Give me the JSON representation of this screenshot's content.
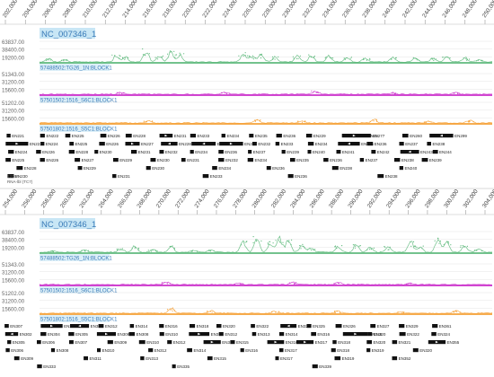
{
  "app": {
    "name": "genome-browser",
    "sequence_id_visible": "NC_007346_1"
  },
  "panels": [
    {
      "id": "panel-1",
      "axis_ticks": [
        "202,000",
        "204,000",
        "206,000",
        "208,000",
        "210,000",
        "212,000",
        "214,000",
        "216,000",
        "218,000",
        "220,000",
        "222,000",
        "224,000",
        "226,000",
        "228,000",
        "230,000",
        "232,000",
        "234,000",
        "236,000",
        "238,000",
        "240,000",
        "242,000",
        "244,000",
        "246,000",
        "248,000",
        "250,000"
      ],
      "seq_label": "NC_007346_1",
      "tracks": [
        {
          "name": "57488502:TG26_1N:BLOCK1",
          "color": "#5fba7d",
          "y_ticks": [
            "63837.00",
            "38400.00",
            "19200.00"
          ],
          "peaks": [
            [
              0.02,
              0.18
            ],
            [
              0.055,
              0.12
            ],
            [
              0.17,
              0.35
            ],
            [
              0.19,
              0.22
            ],
            [
              0.235,
              0.55
            ],
            [
              0.265,
              0.32
            ],
            [
              0.29,
              0.45
            ],
            [
              0.31,
              0.38
            ],
            [
              0.45,
              0.4
            ],
            [
              0.47,
              0.3
            ],
            [
              0.49,
              0.35
            ],
            [
              0.52,
              0.25
            ],
            [
              0.57,
              0.3
            ],
            [
              0.6,
              0.35
            ],
            [
              0.64,
              0.28
            ],
            [
              0.68,
              0.22
            ],
            [
              0.72,
              0.18
            ],
            [
              0.78,
              0.22
            ],
            [
              0.83,
              0.2
            ],
            [
              0.87,
              0.18
            ],
            [
              0.9,
              0.25
            ],
            [
              0.94,
              0.2
            ],
            [
              0.97,
              0.12
            ]
          ]
        },
        {
          "name": "57501502:1516_S6C1:BLOCK1",
          "color": "#cc33cc",
          "y_ticks": [
            "51343.00",
            "31200.00",
            "15600.00"
          ],
          "peaks": [
            [
              0.18,
              0.1
            ],
            [
              0.41,
              0.12
            ],
            [
              0.61,
              0.18
            ],
            [
              0.78,
              0.08
            ],
            [
              0.92,
              0.1
            ]
          ]
        },
        {
          "name": "57501802:1516_S5C1:BLOCK1",
          "color": "#f5a23a",
          "y_ticks": [
            "51202.00",
            "31200.00",
            "15600.00"
          ],
          "peaks": [
            [
              0.24,
              0.12
            ],
            [
              0.48,
              0.18
            ],
            [
              0.58,
              0.12
            ],
            [
              0.74,
              0.2
            ],
            [
              0.86,
              0.1
            ],
            [
              0.95,
              0.14
            ]
          ]
        }
      ],
      "gene_rows": [
        [
          "EN221",
          "EN222",
          "EN225",
          "EN226",
          "EN228",
          "EN231",
          "EN233",
          "EN234",
          "EN235",
          "EN236",
          "EN229",
          "EN23",
          "EN277",
          "EN260",
          "EN299"
        ],
        [
          "EN223",
          "EN224",
          "EN225",
          "EN226",
          "EN227",
          "EN228",
          "EN230",
          "EN231",
          "EN232",
          "EN233",
          "EN234",
          "EN235",
          "EN236",
          "EN237",
          "EN238"
        ],
        [
          "EN224",
          "EN226",
          "EN228",
          "EN230",
          "EN231",
          "EN232",
          "EN234",
          "EN236",
          "EN237",
          "EN239",
          "EN240",
          "EN241",
          "EN242",
          "EN243",
          "EN244"
        ],
        [
          "EN225",
          "EN226",
          "EN227",
          "EN229",
          "EN230",
          "EN231",
          "EN232",
          "EN234",
          "EN235",
          "EN236",
          "EN237",
          "EN238",
          "EN239"
        ],
        [
          "EN228",
          "EN229",
          "EN230",
          "EN234",
          "EN236",
          "EN238",
          "EN240"
        ],
        [
          "EN230",
          "EN231",
          "EN233",
          "EN236",
          "EN238"
        ]
      ],
      "footnote": "RNA-lbl (TC7)",
      "footnote_id": "1206A"
    },
    {
      "id": "panel-2",
      "axis_ticks": [
        "254,000",
        "256,000",
        "258,000",
        "260,000",
        "262,000",
        "264,000",
        "266,000",
        "268,000",
        "270,000",
        "272,000",
        "274,000",
        "276,000",
        "278,000",
        "280,000",
        "282,000",
        "284,000",
        "286,000",
        "288,000",
        "290,000",
        "292,000",
        "294,000",
        "296,000",
        "298,000",
        "300,000",
        "302,000",
        "304,000"
      ],
      "seq_label": "NC_007346_1",
      "tracks": [
        {
          "name": "57488502:TG26_1N:BLOCK1",
          "color": "#5fba7d",
          "y_ticks": [
            "63837.00",
            "38400.00",
            "19200.00"
          ],
          "peaks": [
            [
              0.03,
              0.08
            ],
            [
              0.1,
              0.12
            ],
            [
              0.18,
              0.18
            ],
            [
              0.21,
              0.3
            ],
            [
              0.25,
              0.15
            ],
            [
              0.29,
              0.3
            ],
            [
              0.34,
              0.12
            ],
            [
              0.38,
              0.12
            ],
            [
              0.45,
              0.55
            ],
            [
              0.48,
              0.7
            ],
            [
              0.51,
              0.45
            ],
            [
              0.53,
              0.8
            ],
            [
              0.55,
              0.6
            ],
            [
              0.58,
              0.35
            ],
            [
              0.6,
              0.22
            ],
            [
              0.66,
              0.3
            ],
            [
              0.7,
              0.4
            ],
            [
              0.73,
              0.25
            ],
            [
              0.77,
              0.28
            ],
            [
              0.82,
              0.5
            ],
            [
              0.84,
              0.3
            ],
            [
              0.88,
              0.6
            ],
            [
              0.9,
              0.45
            ],
            [
              0.94,
              0.3
            ],
            [
              0.97,
              0.18
            ]
          ]
        },
        {
          "name": "57501502:1516_S6C1:BLOCK1",
          "color": "#cc33cc",
          "y_ticks": [
            "51343.00",
            "31200.00",
            "15600.00"
          ],
          "peaks": [
            [
              0.28,
              0.14
            ],
            [
              0.44,
              0.08
            ],
            [
              0.56,
              0.12
            ],
            [
              0.66,
              0.1
            ],
            [
              0.82,
              0.08
            ]
          ]
        },
        {
          "name": "57501802:1516_S5C1:BLOCK1",
          "color": "#f5a23a",
          "y_ticks": [
            "51202.00",
            "31200.00",
            "15600.00"
          ],
          "peaks": [
            [
              0.29,
              0.28
            ],
            [
              0.38,
              0.12
            ],
            [
              0.52,
              0.1
            ],
            [
              0.66,
              0.12
            ],
            [
              0.8,
              0.08
            ],
            [
              0.92,
              0.12
            ]
          ]
        }
      ],
      "gene_rows": [
        [
          "EN307",
          "EN309",
          "EN310",
          "EN312",
          "EN314",
          "EN316",
          "EN318",
          "EN320",
          "EN322",
          "EN324",
          "EN325",
          "EN326",
          "EN327",
          "EN329",
          "EN361"
        ],
        [
          "EN302",
          "EN304",
          "EN305",
          "EN306",
          "EN308",
          "EN310",
          "EN311",
          "EN312",
          "EN313",
          "EN314",
          "EN316",
          "EN318",
          "EN320",
          "EN322",
          "EN324"
        ],
        [
          "EN305",
          "EN306",
          "EN307",
          "EN309",
          "EN310",
          "EN312",
          "EN313",
          "EN315",
          "EN316",
          "EN317",
          "EN318",
          "EN320",
          "EN321",
          "EN355"
        ],
        [
          "EN306",
          "EN308",
          "EN310",
          "EN312",
          "EN314",
          "EN316",
          "EN317",
          "EN318",
          "EN319",
          "EN320"
        ],
        [
          "EN309",
          "EN311",
          "EN313",
          "EN315",
          "EN317",
          "EN319",
          "EN352"
        ],
        [
          "EN333",
          "EN335",
          "EN339"
        ]
      ]
    }
  ]
}
